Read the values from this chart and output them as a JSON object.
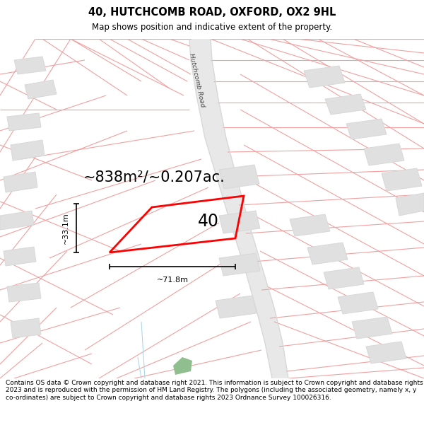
{
  "title": "40, HUTCHCOMB ROAD, OXFORD, OX2 9HL",
  "subtitle": "Map shows position and indicative extent of the property.",
  "area_text": "~838m²/~0.207ac.",
  "dim_width": "~71.8m",
  "dim_height": "~33.1m",
  "label": "40",
  "road_label": "Hutchcomb Road",
  "footer": "Contains OS data © Crown copyright and database right 2021. This information is subject to Crown copyright and database rights 2023 and is reproduced with the permission of HM Land Registry. The polygons (including the associated geometry, namely x, y co-ordinates) are subject to Crown copyright and database rights 2023 Ordnance Survey 100026316.",
  "bg_color": "#ffffff",
  "lc": "#f0a0a0",
  "gc": "#d8d8d8",
  "title_fontsize": 10.5,
  "subtitle_fontsize": 8.5,
  "area_fontsize": 15,
  "label_fontsize": 17,
  "footer_fontsize": 6.5,
  "prop_color": "#ff0000",
  "road_gray": "#b8b8b8",
  "block_gray": "#e0e0e0",
  "block_edge": "#cccccc"
}
